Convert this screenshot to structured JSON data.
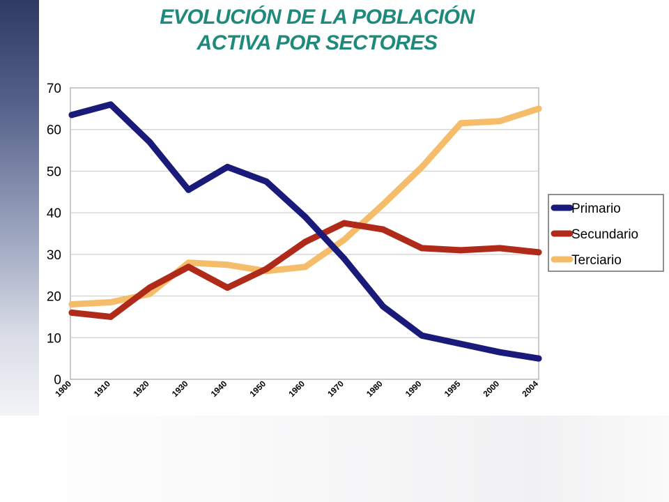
{
  "title": {
    "line1": "EVOLUCIÓN DE LA POBLACIÓN",
    "line2": "ACTIVA POR SECTORES"
  },
  "chart_data": {
    "type": "line",
    "title": "EVOLUCIÓN DE LA POBLACIÓN ACTIVA POR SECTORES",
    "categories": [
      "1900",
      "1910",
      "1920",
      "1930",
      "1940",
      "1950",
      "1960",
      "1970",
      "1980",
      "1990",
      "1995",
      "2000",
      "2004"
    ],
    "ylim": [
      0,
      70
    ],
    "yticks": [
      0,
      10,
      20,
      30,
      40,
      50,
      60,
      70
    ],
    "grid": true,
    "legend_position": "right",
    "series": [
      {
        "name": "Primario",
        "color": "#1a1a7a",
        "values": [
          63.5,
          66,
          57,
          45.5,
          51,
          47.5,
          39,
          29,
          17.5,
          10.5,
          8.5,
          6.5,
          5
        ]
      },
      {
        "name": "Secundario",
        "color": "#b02a1a",
        "values": [
          16,
          15,
          22,
          27,
          22,
          26.5,
          33,
          37.5,
          36,
          31.5,
          31,
          31.5,
          30.5
        ]
      },
      {
        "name": "Terciario",
        "color": "#f5bc6a",
        "values": [
          18,
          18.5,
          20.5,
          28,
          27.5,
          26,
          27,
          33.5,
          42,
          51,
          61.5,
          62,
          65
        ]
      }
    ]
  }
}
